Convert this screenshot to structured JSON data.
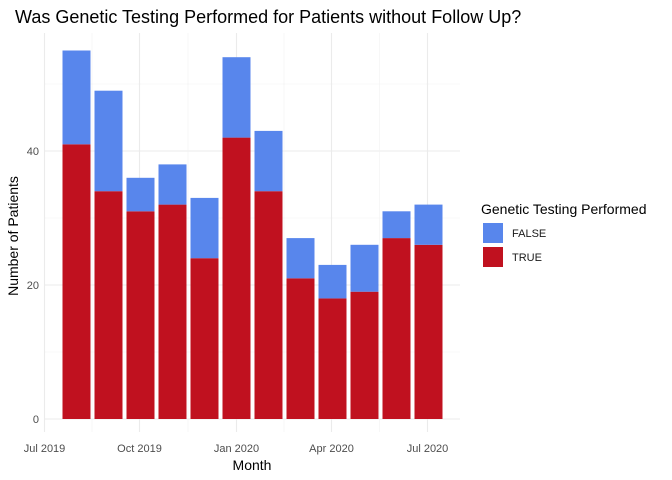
{
  "chart_data": {
    "type": "bar",
    "stacked": true,
    "title": "Was Genetic Testing Performed for Patients without Follow Up?",
    "xlabel": "Month",
    "ylabel": "Number of Patients",
    "x_ticks": [
      "Jul 2019",
      "Oct 2019",
      "Jan 2020",
      "Apr 2020",
      "Jul 2020"
    ],
    "y_ticks": [
      0,
      20,
      40
    ],
    "ylim": [
      0,
      57
    ],
    "grid": true,
    "legend": {
      "title": "Genetic Testing Performed",
      "position": "right",
      "entries": [
        "FALSE",
        "TRUE"
      ]
    },
    "categories": [
      "2019-08",
      "2019-09",
      "2019-10",
      "2019-11",
      "2019-12",
      "2020-01",
      "2020-02",
      "2020-03",
      "2020-04",
      "2020-05",
      "2020-06",
      "2020-07"
    ],
    "series": [
      {
        "name": "TRUE",
        "color": "#c0111f",
        "values": [
          41,
          34,
          31,
          32,
          24,
          42,
          34,
          21,
          18,
          19,
          27,
          26
        ]
      },
      {
        "name": "FALSE",
        "color": "#5886ec",
        "values": [
          14,
          15,
          5,
          6,
          9,
          12,
          9,
          6,
          5,
          7,
          4,
          6
        ]
      }
    ]
  }
}
